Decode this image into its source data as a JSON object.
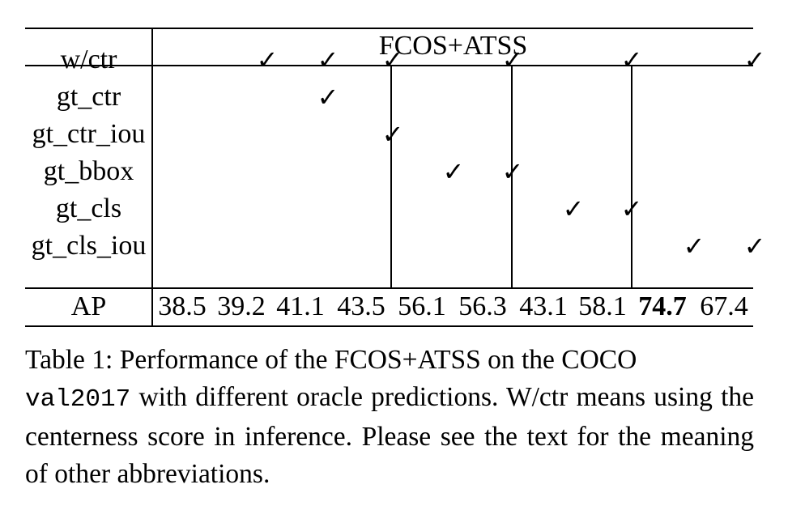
{
  "table": {
    "group_header": "FCOS+ATSS",
    "rows": [
      {
        "label": "w/ctr",
        "checks": [
          false,
          true,
          true,
          true,
          false,
          true,
          false,
          true,
          false,
          true
        ]
      },
      {
        "label": "gt_ctr",
        "checks": [
          false,
          false,
          true,
          false,
          false,
          false,
          false,
          false,
          false,
          false
        ]
      },
      {
        "label": "gt_ctr_iou",
        "checks": [
          false,
          false,
          false,
          true,
          false,
          false,
          false,
          false,
          false,
          false
        ]
      },
      {
        "label": "gt_bbox",
        "checks": [
          false,
          false,
          false,
          false,
          true,
          true,
          false,
          false,
          false,
          false
        ]
      },
      {
        "label": "gt_cls",
        "checks": [
          false,
          false,
          false,
          false,
          false,
          false,
          true,
          true,
          false,
          false
        ]
      },
      {
        "label": "gt_cls_iou",
        "checks": [
          false,
          false,
          false,
          false,
          false,
          false,
          false,
          false,
          true,
          true
        ]
      }
    ],
    "check_mark": "✓",
    "ap_label": "AP",
    "ap_values": [
      "38.5",
      "39.2",
      "41.1",
      "43.5",
      "56.1",
      "56.3",
      "43.1",
      "58.1",
      "74.7",
      "67.4"
    ],
    "best_index": 8
  },
  "caption": {
    "lead": "Table 1:  Performance of the FCOS+ATSS on the COCO",
    "code": "val2017",
    "rest": " with different oracle predictions.  W/ctr means using the centerness score in inference. Please see the text for the meaning of other abbreviations."
  }
}
